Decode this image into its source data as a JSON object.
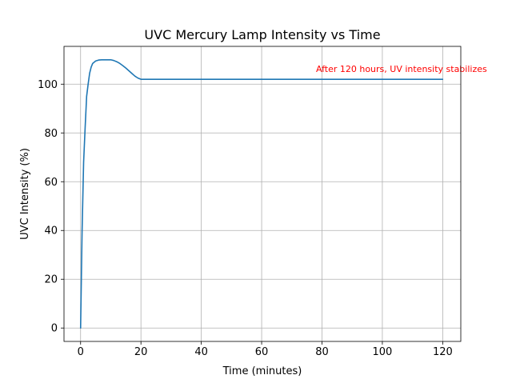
{
  "chart_data": {
    "type": "line",
    "title": "UVC Mercury Lamp Intensity vs Time",
    "xlabel": "Time (minutes)",
    "ylabel": "UVC Intensity (%)",
    "xlim": [
      -5.5,
      126
    ],
    "ylim": [
      -5.5,
      115.5
    ],
    "x_ticks": [
      0,
      20,
      40,
      60,
      80,
      100,
      120
    ],
    "y_ticks": [
      0,
      20,
      40,
      60,
      80,
      100
    ],
    "grid": true,
    "series": [
      {
        "color": "#1f77b4",
        "x": [
          0,
          0.5,
          1,
          1.5,
          2,
          2.5,
          3,
          3.5,
          4,
          5,
          6,
          7,
          8,
          9,
          10,
          11,
          12,
          13,
          14,
          15,
          16,
          17,
          18,
          19,
          20,
          30,
          40,
          50,
          60,
          70,
          80,
          90,
          100,
          110,
          120
        ],
        "y": [
          0,
          40,
          68,
          82,
          95,
          100,
          104.5,
          107,
          108.5,
          109.5,
          109.9,
          110,
          110,
          110,
          110,
          109.7,
          109.2,
          108.5,
          107.6,
          106.6,
          105.5,
          104.4,
          103.3,
          102.5,
          102,
          102,
          102,
          102,
          102,
          102,
          102,
          102,
          102,
          102,
          102
        ]
      }
    ],
    "annotations": [
      {
        "text": "After 120 hours, UV intensity stabilizes",
        "x": 78,
        "y": 105,
        "color": "#ff0000"
      }
    ]
  }
}
